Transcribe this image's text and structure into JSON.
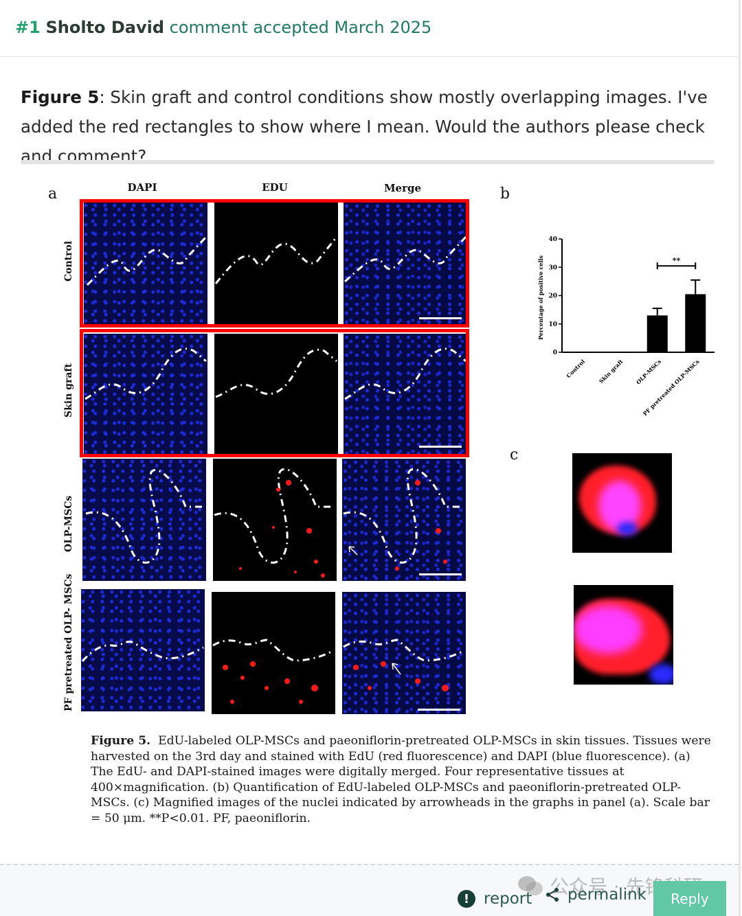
{
  "header": {
    "number": "#1",
    "author": "Sholto David",
    "status": "comment accepted March 2025"
  },
  "comment": {
    "figure_ref": "Figure 5",
    "text": ": Skin graft and control conditions show mostly overlapping images. I've added the red rectangles to show where I mean. Would the authors please check and comment?"
  },
  "figure": {
    "panel_a": "a",
    "panel_b": "b",
    "panel_c": "c",
    "columns": [
      "DAPI",
      "EDU",
      "Merge"
    ],
    "rows": [
      "Control",
      "Skin graft",
      "OLP-MSCs",
      "PF pretreated OLP- MSCs"
    ],
    "colors": {
      "red_box": "#ff0000",
      "dapi_blue": "#1e2bd6",
      "edu_red": "#ff1a1a",
      "magenta": "#ff33ff"
    }
  },
  "chart_data": {
    "type": "bar",
    "categories": [
      "Control",
      "Skin graft",
      "OLP-MSCs",
      "PF pretreated OLP-MSCs"
    ],
    "values": [
      0,
      0,
      13,
      20.5
    ],
    "errors": [
      0,
      0,
      2.5,
      5
    ],
    "ylabel": "Percentage of positive cells",
    "yticks": [
      "0",
      "10",
      "20",
      "30",
      "40"
    ],
    "ylim": [
      0,
      40
    ],
    "significance": "**",
    "grid": false
  },
  "caption": {
    "label": "Figure 5.",
    "text": "EdU-labeled OLP-MSCs and paeoniflorin-pretreated OLP-MSCs in skin tissues. Tissues were harvested on the 3rd day and stained with EdU (red fluorescence) and DAPI (blue fluorescence). (a) The EdU- and DAPI-stained images were digitally merged. Four representative tissues at 400×magnification. (b) Quantification of EdU-labeled OLP-MSCs and paeoniflorin-pretreated OLP-MSCs. (c) Magnified images of the nuclei indicated by arrowheads in the graphs in panel (a). Scale bar = 50 μm. **P<0.01. PF, paeoniflorin."
  },
  "footer": {
    "report": "report",
    "permalink": "permalink",
    "reply": "Reply",
    "watermark": "公众号 · 先锋科研"
  }
}
